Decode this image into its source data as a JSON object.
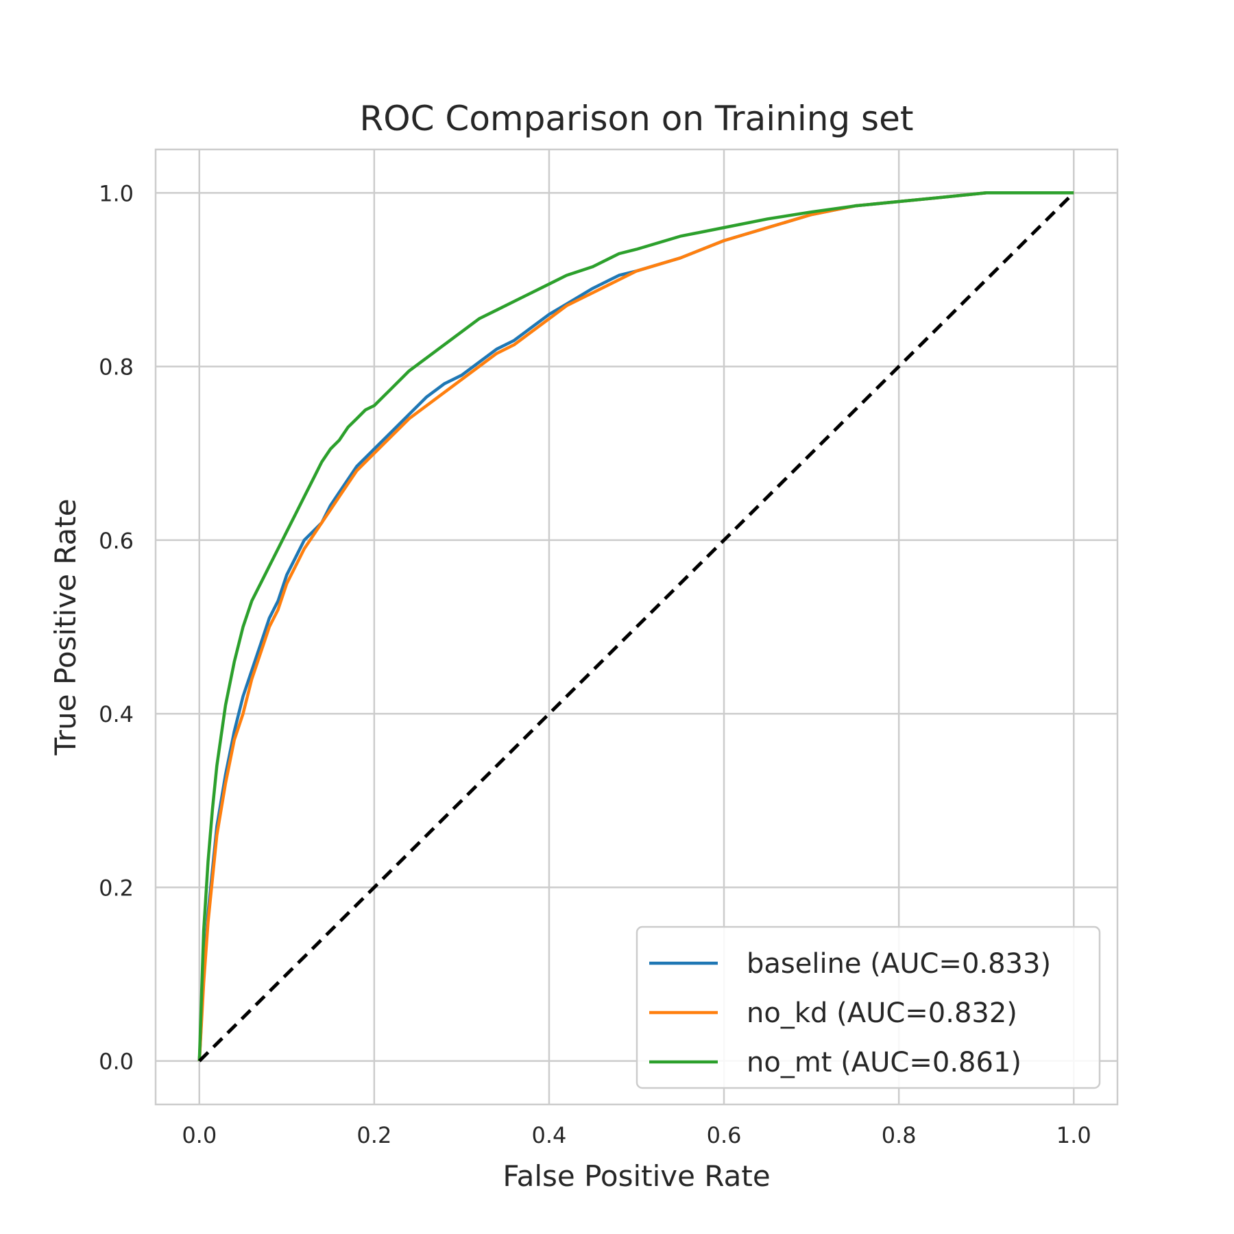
{
  "chart_data": {
    "type": "line",
    "title": "ROC Comparison on Training set",
    "xlabel": "False Positive Rate",
    "ylabel": "True Positive Rate",
    "xlim": [
      -0.05,
      1.05
    ],
    "ylim": [
      -0.05,
      1.05
    ],
    "xticks": [
      0.0,
      0.2,
      0.4,
      0.6,
      0.8,
      1.0
    ],
    "yticks": [
      0.0,
      0.2,
      0.4,
      0.6,
      0.8,
      1.0
    ],
    "xtick_labels": [
      "0.0",
      "0.2",
      "0.4",
      "0.6",
      "0.8",
      "1.0"
    ],
    "ytick_labels": [
      "0.0",
      "0.2",
      "0.4",
      "0.6",
      "0.8",
      "1.0"
    ],
    "grid": true,
    "legend_position": "lower-right",
    "series": [
      {
        "name": "baseline (AUC=0.833)",
        "color": "#1f77b4",
        "x": [
          0.0,
          0.005,
          0.01,
          0.015,
          0.02,
          0.03,
          0.04,
          0.05,
          0.06,
          0.07,
          0.08,
          0.09,
          0.1,
          0.11,
          0.12,
          0.13,
          0.14,
          0.15,
          0.16,
          0.17,
          0.18,
          0.19,
          0.2,
          0.22,
          0.24,
          0.26,
          0.28,
          0.3,
          0.32,
          0.34,
          0.36,
          0.38,
          0.4,
          0.42,
          0.45,
          0.48,
          0.5,
          0.55,
          0.6,
          0.65,
          0.7,
          0.75,
          0.8,
          0.85,
          0.9,
          0.95,
          1.0
        ],
        "y": [
          0.0,
          0.1,
          0.17,
          0.22,
          0.27,
          0.33,
          0.38,
          0.42,
          0.45,
          0.48,
          0.51,
          0.53,
          0.56,
          0.58,
          0.6,
          0.61,
          0.62,
          0.64,
          0.655,
          0.67,
          0.685,
          0.695,
          0.705,
          0.725,
          0.745,
          0.765,
          0.78,
          0.79,
          0.805,
          0.82,
          0.83,
          0.845,
          0.86,
          0.872,
          0.89,
          0.905,
          0.91,
          0.925,
          0.945,
          0.96,
          0.975,
          0.985,
          0.99,
          0.995,
          1.0,
          1.0,
          1.0
        ]
      },
      {
        "name": "no_kd (AUC=0.832)",
        "color": "#ff7f0e",
        "x": [
          0.0,
          0.005,
          0.01,
          0.015,
          0.02,
          0.03,
          0.04,
          0.05,
          0.06,
          0.07,
          0.08,
          0.09,
          0.1,
          0.11,
          0.12,
          0.13,
          0.14,
          0.15,
          0.16,
          0.17,
          0.18,
          0.19,
          0.2,
          0.22,
          0.24,
          0.26,
          0.28,
          0.3,
          0.32,
          0.34,
          0.36,
          0.38,
          0.4,
          0.42,
          0.45,
          0.48,
          0.5,
          0.55,
          0.6,
          0.65,
          0.7,
          0.75,
          0.8,
          0.85,
          0.9,
          0.95,
          1.0
        ],
        "y": [
          0.0,
          0.09,
          0.16,
          0.21,
          0.26,
          0.32,
          0.37,
          0.4,
          0.44,
          0.47,
          0.5,
          0.52,
          0.55,
          0.57,
          0.59,
          0.605,
          0.62,
          0.635,
          0.65,
          0.665,
          0.68,
          0.69,
          0.7,
          0.72,
          0.74,
          0.755,
          0.77,
          0.785,
          0.8,
          0.815,
          0.825,
          0.84,
          0.855,
          0.87,
          0.885,
          0.9,
          0.91,
          0.925,
          0.945,
          0.96,
          0.975,
          0.985,
          0.99,
          0.995,
          1.0,
          1.0,
          1.0
        ]
      },
      {
        "name": "no_mt (AUC=0.861)",
        "color": "#2ca02c",
        "x": [
          0.0,
          0.005,
          0.01,
          0.015,
          0.02,
          0.03,
          0.04,
          0.05,
          0.06,
          0.07,
          0.08,
          0.09,
          0.1,
          0.11,
          0.12,
          0.13,
          0.14,
          0.15,
          0.16,
          0.17,
          0.18,
          0.19,
          0.2,
          0.22,
          0.24,
          0.26,
          0.28,
          0.3,
          0.32,
          0.34,
          0.36,
          0.38,
          0.4,
          0.42,
          0.45,
          0.48,
          0.5,
          0.55,
          0.6,
          0.65,
          0.7,
          0.75,
          0.8,
          0.85,
          0.9,
          0.95,
          1.0
        ],
        "y": [
          0.0,
          0.15,
          0.23,
          0.29,
          0.34,
          0.41,
          0.46,
          0.5,
          0.53,
          0.55,
          0.57,
          0.59,
          0.61,
          0.63,
          0.65,
          0.67,
          0.69,
          0.705,
          0.715,
          0.73,
          0.74,
          0.75,
          0.755,
          0.775,
          0.795,
          0.81,
          0.825,
          0.84,
          0.855,
          0.865,
          0.875,
          0.885,
          0.895,
          0.905,
          0.915,
          0.93,
          0.935,
          0.95,
          0.96,
          0.97,
          0.978,
          0.985,
          0.99,
          0.995,
          1.0,
          1.0,
          1.0
        ]
      }
    ],
    "reference_line": {
      "x": [
        0.0,
        1.0
      ],
      "y": [
        0.0,
        1.0
      ],
      "color": "#000000",
      "style": "dashed"
    }
  }
}
